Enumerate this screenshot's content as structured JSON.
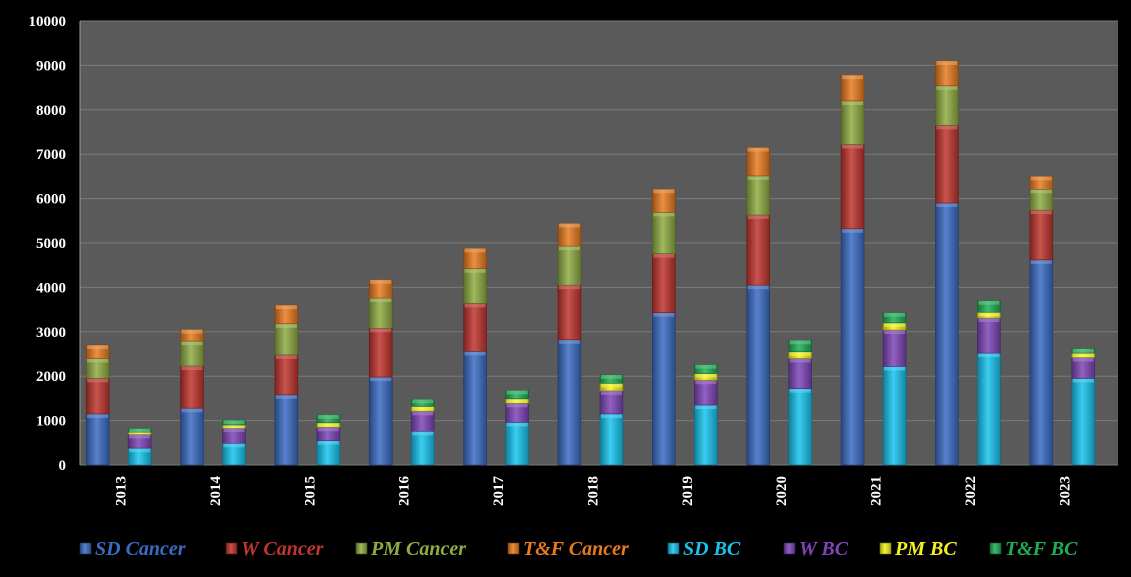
{
  "chart_data": {
    "type": "bar",
    "stacked": true,
    "grouped": true,
    "categories": [
      "2013",
      "2014",
      "2015",
      "2016",
      "2017",
      "2018",
      "2019",
      "2020",
      "2021",
      "2022",
      "2023"
    ],
    "ylim": [
      0,
      10000
    ],
    "yticks": [
      0,
      1000,
      2000,
      3000,
      4000,
      5000,
      6000,
      7000,
      8000,
      9000,
      10000
    ],
    "grid": true,
    "legend_position": "bottom",
    "background_color": "#000000",
    "plot_background_color": "#5a5a5a",
    "stacks": [
      {
        "name": "Cancer",
        "series": [
          {
            "name": "SD Cancer",
            "color": "#3b6cc4",
            "values": [
              1150,
              1280,
              1580,
              1980,
              2560,
              2820,
              3430,
              4050,
              5320,
              5900,
              4620
            ]
          },
          {
            "name": "W Cancer",
            "color": "#c0352e",
            "values": [
              800,
              950,
              900,
              1100,
              1080,
              1230,
              1330,
              1580,
              1900,
              1750,
              1120
            ]
          },
          {
            "name": "PM Cancer",
            "color": "#8fac42",
            "values": [
              450,
              560,
              700,
              680,
              780,
              880,
              930,
              880,
              980,
              890,
              470
            ]
          },
          {
            "name": "T&F Cancer",
            "color": "#e97b1f",
            "values": [
              300,
              260,
              420,
              410,
              460,
              510,
              520,
              640,
              580,
              560,
              290
            ]
          }
        ]
      },
      {
        "name": "BC",
        "series": [
          {
            "name": "SD BC",
            "color": "#17c4ee",
            "values": [
              380,
              490,
              550,
              760,
              960,
              1150,
              1350,
              1720,
              2220,
              2520,
              1950
            ]
          },
          {
            "name": "W BC",
            "color": "#7e45b8",
            "values": [
              310,
              340,
              300,
              450,
              430,
              520,
              560,
              680,
              820,
              790,
              470
            ]
          },
          {
            "name": "PM BC",
            "color": "#f4f41a",
            "values": [
              50,
              70,
              100,
              110,
              100,
              170,
              150,
              150,
              160,
              130,
              100
            ]
          },
          {
            "name": "T&F BC",
            "color": "#1fae57",
            "values": [
              80,
              110,
              180,
              160,
              190,
              190,
              200,
              260,
              230,
              260,
              100
            ]
          }
        ]
      }
    ]
  }
}
